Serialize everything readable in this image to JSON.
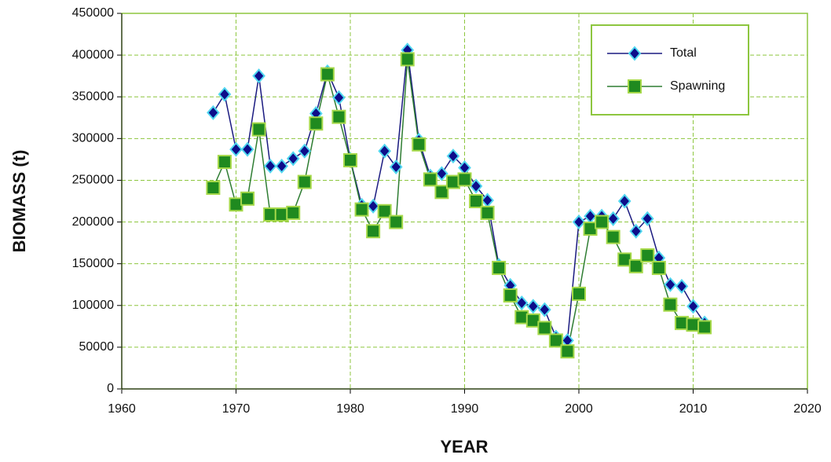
{
  "chart_data": {
    "type": "line",
    "x_label": "YEAR",
    "y_label": "BIOMASS  (t)",
    "x": [
      1968,
      1969,
      1970,
      1971,
      1972,
      1973,
      1974,
      1975,
      1976,
      1977,
      1978,
      1979,
      1980,
      1981,
      1982,
      1983,
      1984,
      1985,
      1986,
      1987,
      1988,
      1989,
      1990,
      1991,
      1992,
      1993,
      1994,
      1995,
      1996,
      1997,
      1998,
      1999,
      2000,
      2001,
      2002,
      2003,
      2004,
      2005,
      2006,
      2007,
      2008,
      2009,
      2010,
      2011
    ],
    "series": [
      {
        "name": "Total",
        "color": "#1a1a80",
        "marker": "diamond",
        "marker_color": "#0d0d8a",
        "marker_edge": "#4fd7f0",
        "values": [
          331000,
          353000,
          287000,
          287000,
          375000,
          267000,
          267000,
          276000,
          285000,
          330000,
          380000,
          349000,
          275000,
          220000,
          219000,
          285000,
          266000,
          406000,
          298000,
          255000,
          258000,
          279000,
          265000,
          243000,
          226000,
          148000,
          124000,
          103000,
          99000,
          95000,
          62000,
          58000,
          200000,
          207000,
          207000,
          204000,
          225000,
          189000,
          204000,
          157000,
          125000,
          123000,
          99000,
          79000
        ]
      },
      {
        "name": "Spawning",
        "color": "#2e7d32",
        "marker": "square",
        "marker_color": "#1f8a1f",
        "marker_edge": "#a6d94a",
        "values": [
          241000,
          272000,
          221000,
          228000,
          311000,
          209000,
          209000,
          211000,
          248000,
          318000,
          377000,
          326000,
          274000,
          215000,
          189000,
          213000,
          200000,
          395000,
          293000,
          251000,
          236000,
          248000,
          251000,
          225000,
          211000,
          145000,
          112000,
          86000,
          82000,
          73000,
          58000,
          45000,
          114000,
          192000,
          200000,
          182000,
          155000,
          147000,
          160000,
          145000,
          101000,
          79000,
          77000,
          74000
        ]
      }
    ],
    "xlim": [
      1960,
      2020
    ],
    "xticks": [
      1960,
      1970,
      1980,
      1990,
      2000,
      2010,
      2020
    ],
    "ylim": [
      0,
      450000
    ],
    "yticks": [
      0,
      50000,
      100000,
      150000,
      200000,
      250000,
      300000,
      350000,
      400000,
      450000
    ],
    "grid": true,
    "grid_color": "#8dc63f",
    "legend": "upper right"
  }
}
